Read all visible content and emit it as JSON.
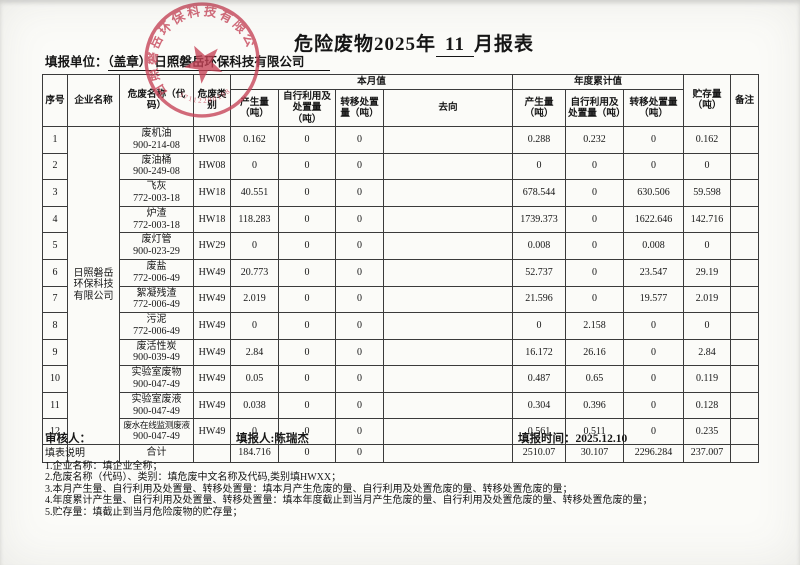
{
  "page": {
    "title_prefix": "危险废物2025年",
    "title_month": "11",
    "title_suffix": "月报表",
    "unit_label": "填报单位：",
    "unit_value": "（盖章）  日照磐岳环保科技有限公司"
  },
  "stamp": {
    "arc_text": "日照磐岳环保科技有限公司",
    "serial": "37112200198",
    "color": "#c64256"
  },
  "table": {
    "headers": {
      "index": "序号",
      "company": "企业名称",
      "waste_name": "危废名称（代码）",
      "waste_category": "危废类别",
      "month_group": "本月值",
      "year_group": "年度累计值",
      "produced": "产生量（吨）",
      "self_disposed": "自行利用及处置量（吨）",
      "transferred": "转移处置量（吨）",
      "destination": "去向",
      "storage": "贮存量（吨）",
      "remark": "备注"
    },
    "company_name": "日照磐岳环保科技有限公司",
    "rows": [
      {
        "no": "1",
        "name": "废机油",
        "code": "900-214-08",
        "cat": "HW08",
        "m_prod": "0.162",
        "m_self": "0",
        "m_trans": "0",
        "dest": "",
        "y_prod": "0.288",
        "y_self": "0.232",
        "y_trans": "0",
        "storage": "0.162",
        "remark": ""
      },
      {
        "no": "2",
        "name": "废油桶",
        "code": "900-249-08",
        "cat": "HW08",
        "m_prod": "0",
        "m_self": "0",
        "m_trans": "0",
        "dest": "",
        "y_prod": "0",
        "y_self": "0",
        "y_trans": "0",
        "storage": "0",
        "remark": ""
      },
      {
        "no": "3",
        "name": "飞灰",
        "code": "772-003-18",
        "cat": "HW18",
        "m_prod": "40.551",
        "m_self": "0",
        "m_trans": "0",
        "dest": "",
        "y_prod": "678.544",
        "y_self": "0",
        "y_trans": "630.506",
        "storage": "59.598",
        "remark": ""
      },
      {
        "no": "4",
        "name": "炉渣",
        "code": "772-003-18",
        "cat": "HW18",
        "m_prod": "118.283",
        "m_self": "0",
        "m_trans": "0",
        "dest": "",
        "y_prod": "1739.373",
        "y_self": "0",
        "y_trans": "1622.646",
        "storage": "142.716",
        "remark": ""
      },
      {
        "no": "5",
        "name": "废灯管",
        "code": "900-023-29",
        "cat": "HW29",
        "m_prod": "0",
        "m_self": "0",
        "m_trans": "0",
        "dest": "",
        "y_prod": "0.008",
        "y_self": "0",
        "y_trans": "0.008",
        "storage": "0",
        "remark": ""
      },
      {
        "no": "6",
        "name": "废盐",
        "code": "772-006-49",
        "cat": "HW49",
        "m_prod": "20.773",
        "m_self": "0",
        "m_trans": "0",
        "dest": "",
        "y_prod": "52.737",
        "y_self": "0",
        "y_trans": "23.547",
        "storage": "29.19",
        "remark": ""
      },
      {
        "no": "7",
        "name": "絮凝残渣",
        "code": "772-006-49",
        "cat": "HW49",
        "m_prod": "2.019",
        "m_self": "0",
        "m_trans": "0",
        "dest": "",
        "y_prod": "21.596",
        "y_self": "0",
        "y_trans": "19.577",
        "storage": "2.019",
        "remark": ""
      },
      {
        "no": "8",
        "name": "污泥",
        "code": "772-006-49",
        "cat": "HW49",
        "m_prod": "0",
        "m_self": "0",
        "m_trans": "0",
        "dest": "",
        "y_prod": "0",
        "y_self": "2.158",
        "y_trans": "0",
        "storage": "0",
        "remark": ""
      },
      {
        "no": "9",
        "name": "废活性炭",
        "code": "900-039-49",
        "cat": "HW49",
        "m_prod": "2.84",
        "m_self": "0",
        "m_trans": "0",
        "dest": "",
        "y_prod": "16.172",
        "y_self": "26.16",
        "y_trans": "0",
        "storage": "2.84",
        "remark": ""
      },
      {
        "no": "10",
        "name": "实验室废物",
        "code": "900-047-49",
        "cat": "HW49",
        "m_prod": "0.05",
        "m_self": "0",
        "m_trans": "0",
        "dest": "",
        "y_prod": "0.487",
        "y_self": "0.65",
        "y_trans": "0",
        "storage": "0.119",
        "remark": ""
      },
      {
        "no": "11",
        "name": "实验室废液",
        "code": "900-047-49",
        "cat": "HW49",
        "m_prod": "0.038",
        "m_self": "0",
        "m_trans": "0",
        "dest": "",
        "y_prod": "0.304",
        "y_self": "0.396",
        "y_trans": "0",
        "storage": "0.128",
        "remark": ""
      },
      {
        "no": "12",
        "name": "废水在线监测废液",
        "code": "900-047-49",
        "cat": "HW49",
        "m_prod": "0",
        "m_self": "0",
        "m_trans": "0",
        "dest": "",
        "y_prod": "0.561",
        "y_self": "0.511",
        "y_trans": "0",
        "storage": "0.235",
        "remark": ""
      }
    ],
    "total": {
      "label": "合计",
      "m_prod": "184.716",
      "m_self": "0",
      "m_trans": "0",
      "dest": "",
      "y_prod": "2510.07",
      "y_self": "30.107",
      "y_trans": "2296.284",
      "storage": "237.007",
      "remark": ""
    }
  },
  "footer": {
    "reviewer": "审核人：",
    "filler": "填报人:陈瑞杰",
    "fill_time": "填报时间：2025.12.10"
  },
  "notes": {
    "title": "填表说明",
    "items": [
      "1.企业名称：填企业全称；",
      "2.危废名称（代码）、类别：填危废中文名称及代码,类别填HWXX；",
      "3.本月产生量、自行利用及处置量、转移处置量：填本月产生危废的量、自行利用及处置危废的量、转移处置危废的量；",
      "4.年度累计产生量、自行利用及处置量、转移处置量：填本年度截止到当月产生危废的量、自行利用及处置危废的量、转移处置危废的量；",
      "5.贮存量：填截止到当月危险废物的贮存量；"
    ]
  }
}
